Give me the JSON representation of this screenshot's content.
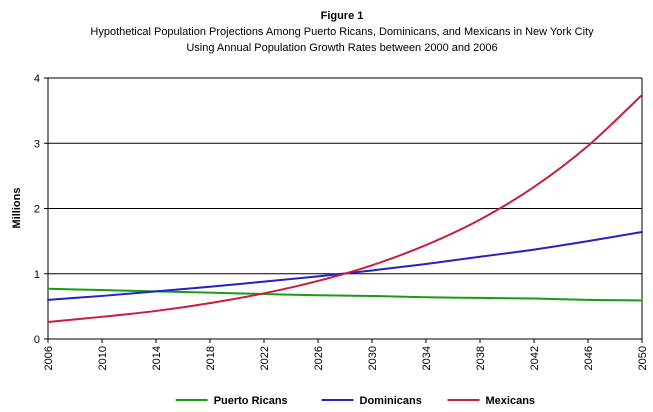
{
  "chart_data": {
    "type": "line",
    "title": "Figure 1",
    "subtitle_lines": [
      "Hypothetical Population Projections Among Puerto Ricans, Dominicans, and Mexicans in New York City",
      "Using Annual Population Growth Rates between 2000 and 2006"
    ],
    "ylabel": "Millions",
    "xlabel": "",
    "xlim": [
      2006,
      2050
    ],
    "ylim": [
      0,
      4
    ],
    "x_ticks": [
      2006,
      2010,
      2014,
      2018,
      2022,
      2026,
      2030,
      2034,
      2038,
      2042,
      2046,
      2050
    ],
    "y_ticks": [
      0,
      1,
      2,
      3,
      4
    ],
    "grid": "horizontal",
    "legend_position": "bottom",
    "series": [
      {
        "name": "Puerto Ricans",
        "color": "#1a9a1a",
        "x": [
          2006,
          2010,
          2014,
          2018,
          2022,
          2026,
          2030,
          2034,
          2038,
          2042,
          2046,
          2050
        ],
        "values": [
          0.77,
          0.75,
          0.73,
          0.71,
          0.69,
          0.67,
          0.66,
          0.64,
          0.63,
          0.62,
          0.6,
          0.59
        ]
      },
      {
        "name": "Dominicans",
        "color": "#2222c8",
        "x": [
          2006,
          2010,
          2014,
          2018,
          2022,
          2026,
          2030,
          2034,
          2038,
          2042,
          2046,
          2050
        ],
        "values": [
          0.6,
          0.66,
          0.73,
          0.8,
          0.88,
          0.96,
          1.05,
          1.15,
          1.26,
          1.37,
          1.5,
          1.64
        ]
      },
      {
        "name": "Mexicans",
        "color": "#c81e3c",
        "x": [
          2006,
          2010,
          2014,
          2018,
          2022,
          2026,
          2030,
          2034,
          2038,
          2042,
          2046,
          2050
        ],
        "values": [
          0.26,
          0.34,
          0.43,
          0.55,
          0.7,
          0.89,
          1.13,
          1.44,
          1.83,
          2.33,
          2.96,
          3.74
        ]
      }
    ]
  }
}
